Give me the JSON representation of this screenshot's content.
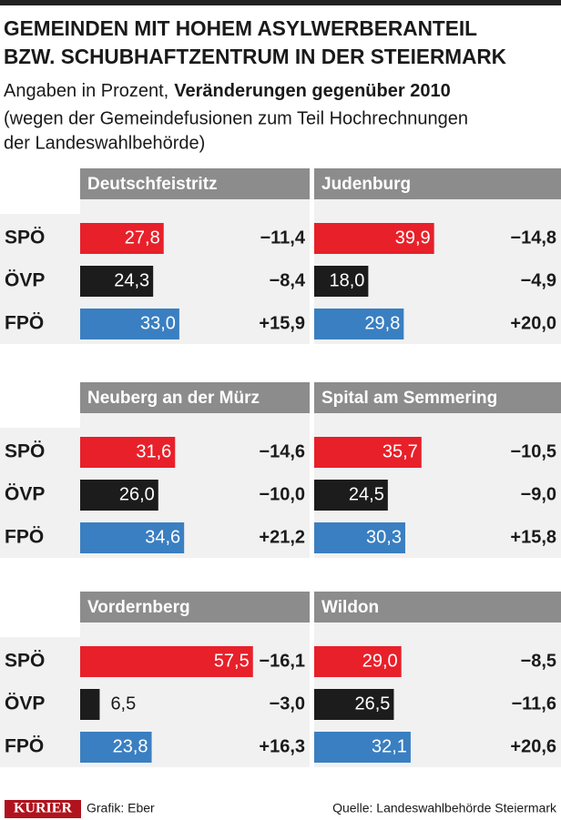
{
  "header": {
    "title_lines": [
      "GEMEINDEN MIT HOHEM ASYLWERBERANTEIL",
      "BZW. SCHUBHAFTZENTRUM IN DER STEIERMARK"
    ],
    "subtitle_prefix": "Angaben in Prozent,",
    "subtitle_bold": "Veränderungen gegenüber 2010",
    "note_lines": [
      "(wegen der Gemeindefusionen zum Teil Hochrechnungen",
      "der Landeswahlbehörde)"
    ]
  },
  "chart_data": {
    "type": "bar",
    "categories": [
      "SPÖ",
      "ÖVP",
      "FPÖ"
    ],
    "colors": [
      "#e8202a",
      "#1c1c1c",
      "#3a7fc1"
    ],
    "panels": [
      {
        "title": "Deutschfeistritz",
        "values": [
          27.8,
          24.3,
          33.0
        ],
        "value_labels": [
          "27,8",
          "24,3",
          "33,0"
        ],
        "changes": [
          -11.4,
          -8.4,
          15.9
        ],
        "change_labels": [
          "−11,4",
          "−8,4",
          "+15,9"
        ]
      },
      {
        "title": "Judenburg",
        "values": [
          39.9,
          18.0,
          29.8
        ],
        "value_labels": [
          "39,9",
          "18,0",
          "29,8"
        ],
        "changes": [
          -14.8,
          -4.9,
          20.0
        ],
        "change_labels": [
          "−14,8",
          "−4,9",
          "+20,0"
        ]
      },
      {
        "title": "Neuberg an der Mürz",
        "values": [
          31.6,
          26.0,
          34.6
        ],
        "value_labels": [
          "31,6",
          "26,0",
          "34,6"
        ],
        "changes": [
          -14.6,
          -10.0,
          21.2
        ],
        "change_labels": [
          "−14,6",
          "−10,0",
          "+21,2"
        ]
      },
      {
        "title": "Spital am Semmering",
        "values": [
          35.7,
          24.5,
          30.3
        ],
        "value_labels": [
          "35,7",
          "24,5",
          "30,3"
        ],
        "changes": [
          -10.5,
          -9.0,
          15.8
        ],
        "change_labels": [
          "−10,5",
          "−9,0",
          "+15,8"
        ]
      },
      {
        "title": "Vordernberg",
        "values": [
          57.5,
          6.5,
          23.8
        ],
        "value_labels": [
          "57,5",
          "6,5",
          "23,8"
        ],
        "changes": [
          -16.1,
          -3.0,
          16.3
        ],
        "change_labels": [
          "−16,1",
          "−3,0",
          "+16,3"
        ]
      },
      {
        "title": "Wildon",
        "values": [
          29.0,
          26.5,
          32.1
        ],
        "value_labels": [
          "29,0",
          "26,5",
          "32,1"
        ],
        "changes": [
          -8.5,
          -11.6,
          20.6
        ],
        "change_labels": [
          "−8,5",
          "−11,6",
          "+20,6"
        ]
      }
    ]
  },
  "footer": {
    "brand": "KURIER",
    "credit": "Grafik: Eber",
    "source": "Quelle: Landeswahlbehörde Steiermark"
  }
}
